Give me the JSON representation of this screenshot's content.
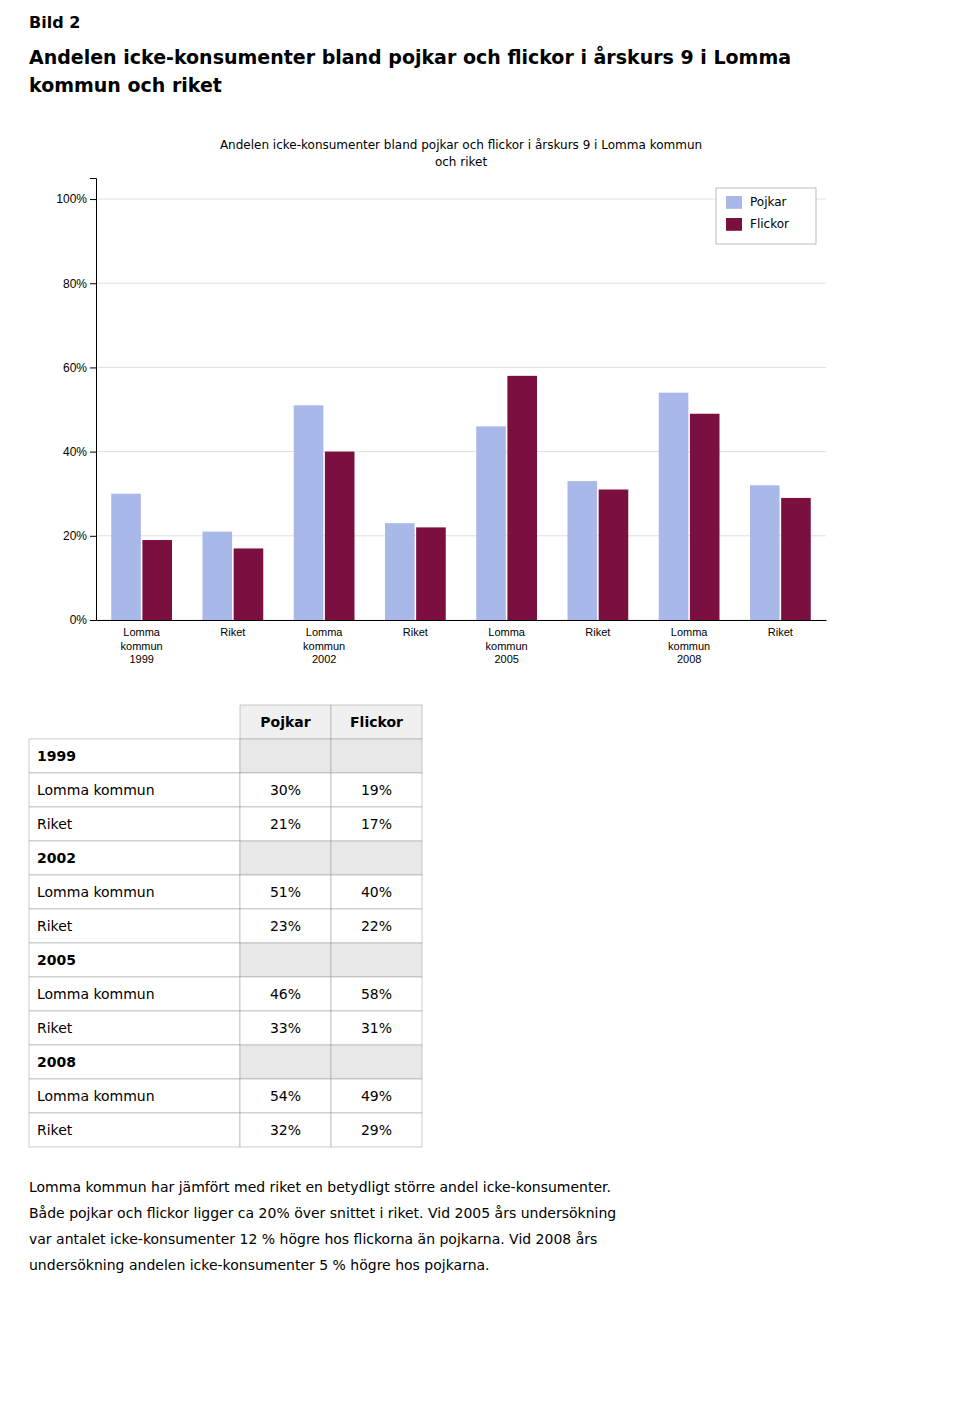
{
  "page_title": "Bild 2",
  "heading": [
    "Andelen icke-konsumenter bland pojkar och flickor i årskurs 9 i Lomma",
    "kommun och riket"
  ],
  "chart_data": {
    "type": "bar",
    "title": "Andelen icke-konsumenter bland pojkar och flickor i årskurs 9 i Lomma kommun\noch riket",
    "categories": [
      "Lomma\nkommun\n1999",
      "Riket",
      "Lomma\nkommun\n2002",
      "Riket",
      "Lomma\nkommun\n2005",
      "Riket",
      "Lomma\nkommun\n2008",
      "Riket"
    ],
    "series": [
      {
        "name": "Pojkar",
        "color": "#a8b8e8",
        "values": [
          0.3,
          0.21,
          0.51,
          0.23,
          0.46,
          0.33,
          0.54,
          0.32
        ]
      },
      {
        "name": "Flickor",
        "color": "#7b1040",
        "values": [
          0.19,
          0.17,
          0.4,
          0.22,
          0.58,
          0.31,
          0.49,
          0.29
        ]
      }
    ],
    "ylim": [
      0,
      1.05
    ],
    "yticks": [
      {
        "value": 0.0,
        "label": "0%"
      },
      {
        "value": 0.2,
        "label": "20%"
      },
      {
        "value": 0.4,
        "label": "40%"
      },
      {
        "value": 0.6,
        "label": "60%"
      },
      {
        "value": 0.8,
        "label": "80%"
      },
      {
        "value": 1.0,
        "label": "100%"
      }
    ],
    "grid": true,
    "legend": "upper right"
  },
  "table": {
    "columns": [
      "Pojkar",
      "Flickor"
    ],
    "rows": [
      {
        "label": "1999"
      },
      {
        "label": "Lomma kommun",
        "cells": [
          "30%",
          "19%"
        ]
      },
      {
        "label": "Riket",
        "cells": [
          "21%",
          "17%"
        ]
      },
      {
        "label": "2002"
      },
      {
        "label": "Lomma kommun",
        "cells": [
          "51%",
          "40%"
        ]
      },
      {
        "label": "Riket",
        "cells": [
          "23%",
          "22%"
        ]
      },
      {
        "label": "2005"
      },
      {
        "label": "Lomma kommun",
        "cells": [
          "46%",
          "58%"
        ]
      },
      {
        "label": "Riket",
        "cells": [
          "33%",
          "31%"
        ]
      },
      {
        "label": "2008"
      },
      {
        "label": "Lomma kommun",
        "cells": [
          "54%",
          "49%"
        ]
      },
      {
        "label": "Riket",
        "cells": [
          "32%",
          "29%"
        ]
      }
    ]
  },
  "paragraph": [
    "Lomma kommun har jämfört med riket en betydligt större andel icke-konsumenter.",
    "Både pojkar och flickor ligger ca 20% över snittet i riket. Vid 2005 års undersökning",
    "var antalet icke-konsumenter 12 % högre hos flickorna än pojkarna. Vid 2008 års",
    "undersökning andelen icke-konsumenter 5 % högre hos pojkarna."
  ]
}
